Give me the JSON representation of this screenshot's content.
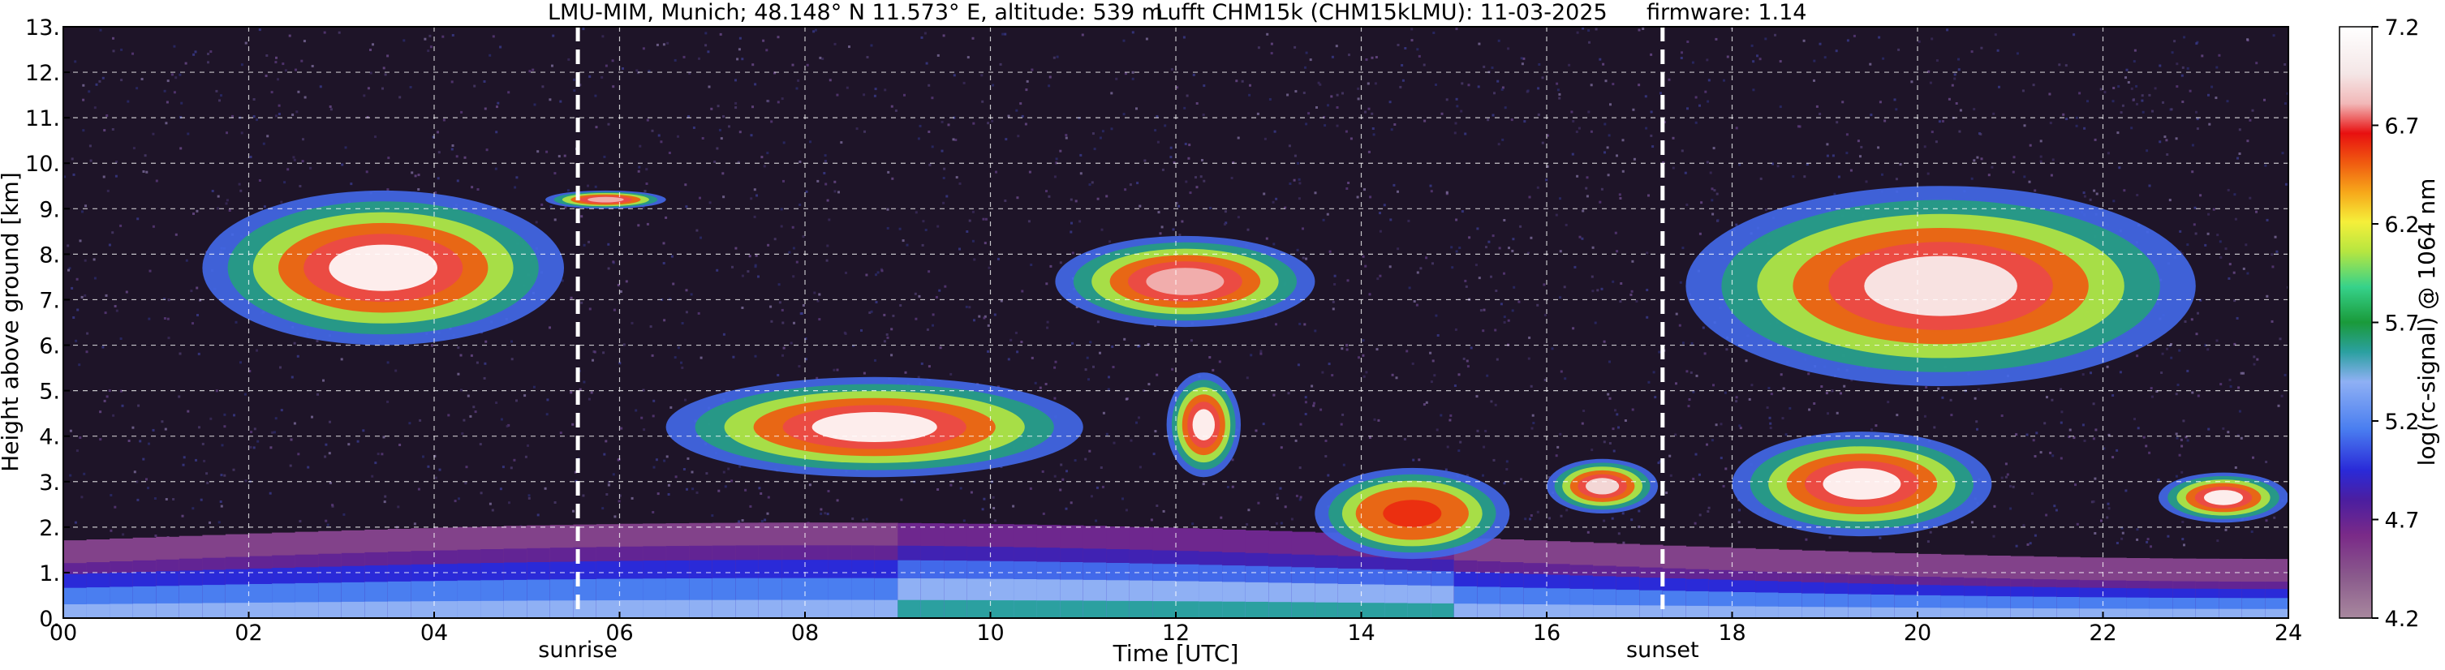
{
  "chart_data": {
    "type": "heatmap",
    "title": {
      "station": "LMU-MIM, Munich; 48.148° N 11.573° E, altitude: 539 m",
      "instrument": "Lufft CHM15k (CHM15kLMU): 11-03-2025",
      "firmware": "firmware: 1.14"
    },
    "xlabel": "Time [UTC]",
    "ylabel": "Height above ground [km]",
    "colorbar_label": "log(rc-signal) @ 1064 nm",
    "x_ticks": [
      "00",
      "02",
      "04",
      "06",
      "08",
      "10",
      "12",
      "14",
      "16",
      "18",
      "20",
      "22",
      "24"
    ],
    "x_tick_values": [
      0,
      2,
      4,
      6,
      8,
      10,
      12,
      14,
      16,
      18,
      20,
      22,
      24
    ],
    "y_ticks": [
      "0.",
      "1.",
      "2.",
      "3.",
      "4.",
      "5.",
      "6.",
      "7.",
      "8.",
      "9.",
      "10.",
      "11.",
      "12.",
      "13."
    ],
    "y_tick_values": [
      0,
      1,
      2,
      3,
      4,
      5,
      6,
      7,
      8,
      9,
      10,
      11,
      12,
      13
    ],
    "xlim": [
      0,
      24
    ],
    "ylim": [
      0,
      13
    ],
    "colorbar_ticks": [
      "4.2",
      "4.7",
      "5.2",
      "5.7",
      "6.2",
      "6.7",
      "7.2"
    ],
    "colorbar_tick_values": [
      4.2,
      4.7,
      5.2,
      5.7,
      6.2,
      6.7,
      7.2
    ],
    "clim": [
      4.2,
      7.2
    ],
    "grid": true,
    "annotations": [
      {
        "label": "sunrise",
        "time": 5.55
      },
      {
        "label": "sunset",
        "time": 17.25
      }
    ],
    "features": [
      {
        "kind": "cirrus",
        "t_start": 1.5,
        "t_end": 5.4,
        "h_bottom": 6.0,
        "h_top": 9.4,
        "peak": 7.2
      },
      {
        "kind": "cirrus",
        "t_start": 5.2,
        "t_end": 6.5,
        "h_bottom": 9.0,
        "h_top": 9.4,
        "peak": 6.6
      },
      {
        "kind": "mid-level cloud",
        "t_start": 6.5,
        "t_end": 11.0,
        "h_bottom": 3.1,
        "h_top": 5.3,
        "peak": 7.2
      },
      {
        "kind": "cirrus",
        "t_start": 10.7,
        "t_end": 13.5,
        "h_bottom": 6.4,
        "h_top": 8.4,
        "peak": 6.6
      },
      {
        "kind": "cloud",
        "t_start": 11.9,
        "t_end": 12.7,
        "h_bottom": 3.1,
        "h_top": 5.4,
        "peak": 7.2
      },
      {
        "kind": "low cloud",
        "t_start": 13.5,
        "t_end": 15.6,
        "h_bottom": 1.3,
        "h_top": 3.3,
        "peak": 6.4
      },
      {
        "kind": "low cloud",
        "t_start": 16.0,
        "t_end": 17.2,
        "h_bottom": 2.3,
        "h_top": 3.5,
        "peak": 6.8
      },
      {
        "kind": "cirrus",
        "t_start": 17.5,
        "t_end": 23.0,
        "h_bottom": 5.1,
        "h_top": 9.5,
        "peak": 7.0
      },
      {
        "kind": "cloud",
        "t_start": 18.0,
        "t_end": 20.8,
        "h_bottom": 1.8,
        "h_top": 4.1,
        "peak": 7.2
      },
      {
        "kind": "cloud",
        "t_start": 22.6,
        "t_end": 24.0,
        "h_bottom": 2.1,
        "h_top": 3.2,
        "peak": 7.2
      }
    ],
    "boundary_layer": {
      "t_start": 0,
      "t_end": 24,
      "h_top_min": 0.8,
      "h_top_max": 1.6,
      "peak": 5.3
    }
  }
}
